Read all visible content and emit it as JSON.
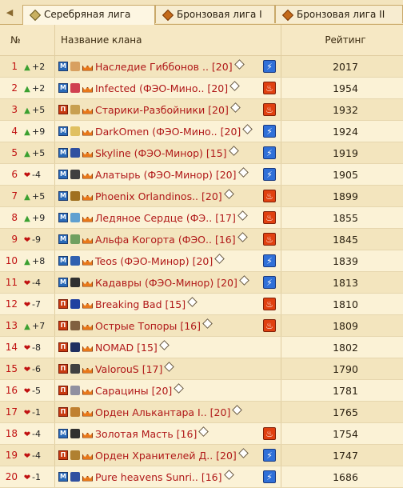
{
  "tabs": [
    {
      "label": "Серебряная лига",
      "icon": "silver"
    },
    {
      "label": "Бронзовая лига I",
      "icon": "bronze"
    },
    {
      "label": "Бронзовая лига II",
      "icon": "bronze"
    }
  ],
  "headers": {
    "num": "№",
    "clan": "Название клана",
    "rating": "Рейтинг"
  },
  "rows": [
    {
      "rank": "1",
      "dir": "up",
      "change": "+2",
      "badge": "M",
      "emblem": "#d8a060",
      "name": "Наследие Гиббонов .. [20]",
      "side": "bolt",
      "rating": "2017"
    },
    {
      "rank": "2",
      "dir": "up",
      "change": "+2",
      "badge": "M",
      "emblem": "#d04050",
      "name": "Infected (ФЭО-Мино.. [20]",
      "side": "fire",
      "rating": "1954"
    },
    {
      "rank": "3",
      "dir": "up",
      "change": "+5",
      "badge": "П",
      "emblem": "#c8a050",
      "name": "Старики-Разбойники [20]",
      "side": "fire",
      "rating": "1932"
    },
    {
      "rank": "4",
      "dir": "up",
      "change": "+9",
      "badge": "M",
      "emblem": "#e0c060",
      "name": "DarkOmen (ФЭО-Мино.. [20]",
      "side": "bolt",
      "rating": "1924"
    },
    {
      "rank": "5",
      "dir": "up",
      "change": "+5",
      "badge": "M",
      "emblem": "#3050a0",
      "name": "Skyline (ФЭО-Минор) [15]",
      "side": "bolt",
      "rating": "1919"
    },
    {
      "rank": "6",
      "dir": "down",
      "change": "-4",
      "badge": "M",
      "emblem": "#404040",
      "name": "Алатырь (ФЭО-Минор) [20]",
      "side": "bolt",
      "rating": "1905"
    },
    {
      "rank": "7",
      "dir": "up",
      "change": "+5",
      "badge": "M",
      "emblem": "#a07020",
      "name": "Phoenix Orlandinos.. [20]",
      "side": "fire",
      "rating": "1899"
    },
    {
      "rank": "8",
      "dir": "up",
      "change": "+9",
      "badge": "M",
      "emblem": "#60a0d0",
      "name": "Ледяное Сердце (ФЭ.. [17]",
      "side": "fire",
      "rating": "1855"
    },
    {
      "rank": "9",
      "dir": "down",
      "change": "-9",
      "badge": "M",
      "emblem": "#70a060",
      "name": "Альфа Когорта (ФЭО.. [16]",
      "side": "fire",
      "rating": "1845"
    },
    {
      "rank": "10",
      "dir": "up",
      "change": "+8",
      "badge": "M",
      "emblem": "#3060b0",
      "name": "Teos (ФЭО-Минор) [20]",
      "side": "bolt",
      "rating": "1839"
    },
    {
      "rank": "11",
      "dir": "down",
      "change": "-4",
      "badge": "M",
      "emblem": "#303030",
      "name": "Кадавры (ФЭО-Минор) [20]",
      "side": "bolt",
      "rating": "1813"
    },
    {
      "rank": "12",
      "dir": "down",
      "change": "-7",
      "badge": "П",
      "emblem": "#2040a0",
      "name": "Breaking Bad [15]",
      "side": "fire",
      "rating": "1810"
    },
    {
      "rank": "13",
      "dir": "up",
      "change": "+7",
      "badge": "П",
      "emblem": "#806040",
      "name": "Острые Топоры [16]",
      "side": "fire",
      "rating": "1809"
    },
    {
      "rank": "14",
      "dir": "down",
      "change": "-8",
      "badge": "П",
      "emblem": "#203060",
      "name": "NOMAD [15]",
      "side": "",
      "rating": "1802"
    },
    {
      "rank": "15",
      "dir": "down",
      "change": "-6",
      "badge": "П",
      "emblem": "#404040",
      "name": "ValorouS [17]",
      "side": "",
      "rating": "1790"
    },
    {
      "rank": "16",
      "dir": "down",
      "change": "-5",
      "badge": "П",
      "emblem": "#9090a0",
      "name": "Сарацины [20]",
      "side": "",
      "rating": "1781"
    },
    {
      "rank": "17",
      "dir": "down",
      "change": "-1",
      "badge": "П",
      "emblem": "#c08030",
      "name": "Орден Алькантара I.. [20]",
      "side": "",
      "rating": "1765"
    },
    {
      "rank": "18",
      "dir": "down",
      "change": "-4",
      "badge": "M",
      "emblem": "#303030",
      "name": "Золотая Масть [16]",
      "side": "fire",
      "rating": "1754"
    },
    {
      "rank": "19",
      "dir": "down",
      "change": "-4",
      "badge": "П",
      "emblem": "#b08030",
      "name": "Орден Хранителей Д.. [20]",
      "side": "bolt",
      "rating": "1747"
    },
    {
      "rank": "20",
      "dir": "down",
      "change": "-1",
      "badge": "M",
      "emblem": "#3050a0",
      "name": "Pure heavens Sunri.. [16]",
      "side": "bolt",
      "rating": "1686"
    }
  ]
}
